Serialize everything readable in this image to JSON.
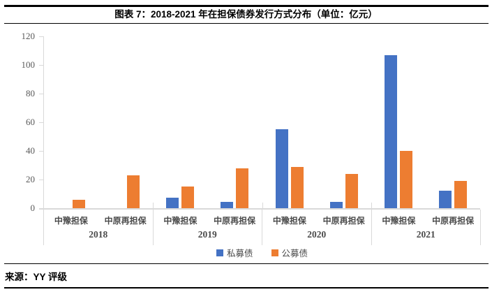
{
  "header": {
    "title": "图表 7：2018-2021 年在担保债券发行方式分布（单位：亿元）"
  },
  "footer": {
    "source": "来源：YY 评级"
  },
  "chart_data": {
    "type": "bar",
    "title": "图表 7：2018-2021 年在担保债券发行方式分布（单位：亿元）",
    "unit": "亿元",
    "xlabel": "",
    "ylabel": "",
    "ylim": [
      0,
      120
    ],
    "y_ticks": [
      0,
      20,
      40,
      60,
      80,
      100,
      120
    ],
    "grid": false,
    "legend_position": "bottom",
    "axis_color": "#d9d9d9",
    "tick_label_color": "#595959",
    "series": [
      {
        "name": "私募债",
        "color": "#4472c4",
        "values": [
          0,
          0,
          7.5,
          4.5,
          55,
          4.5,
          107,
          12
        ]
      },
      {
        "name": "公募债",
        "color": "#ed7d31",
        "values": [
          6,
          23,
          15,
          28,
          29,
          24,
          40,
          19
        ]
      }
    ],
    "categories": [
      "2018-中豫担保",
      "2018-中原再担保",
      "2019-中豫担保",
      "2019-中原再担保",
      "2020-中豫担保",
      "2020-中原再担保",
      "2021-中豫担保",
      "2021-中原再担保"
    ],
    "groups": [
      {
        "year": "2018",
        "items": [
          {
            "label": "中豫担保",
            "values": [
              0,
              6
            ]
          },
          {
            "label": "中原再担保",
            "values": [
              0,
              23
            ]
          }
        ]
      },
      {
        "year": "2019",
        "items": [
          {
            "label": "中豫担保",
            "values": [
              7.5,
              15
            ]
          },
          {
            "label": "中原再担保",
            "values": [
              4.5,
              28
            ]
          }
        ]
      },
      {
        "year": "2020",
        "items": [
          {
            "label": "中豫担保",
            "values": [
              55,
              29
            ]
          },
          {
            "label": "中原再担保",
            "values": [
              4.5,
              24
            ]
          }
        ]
      },
      {
        "year": "2021",
        "items": [
          {
            "label": "中豫担保",
            "values": [
              107,
              40
            ]
          },
          {
            "label": "中原再担保",
            "values": [
              12,
              19
            ]
          }
        ]
      }
    ]
  }
}
